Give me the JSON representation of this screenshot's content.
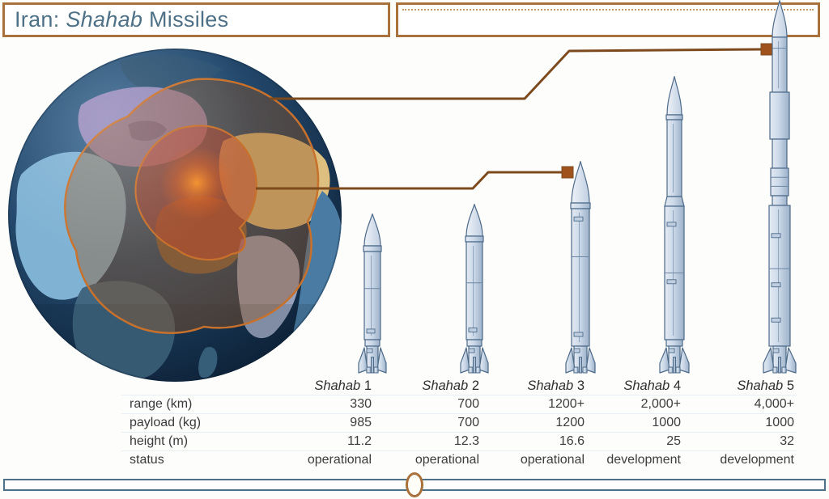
{
  "title": {
    "prefix": "Iran: ",
    "italic": "Shahab",
    "suffix": " Missiles"
  },
  "colors": {
    "accent_brown": "#a9713c",
    "callout_line_brown": "#7d4a1e",
    "callout_marker_brown": "#a0521c",
    "teal": "#4e7187",
    "range_ring_orange": "#c8712c",
    "missile_body_blue": "#ccd9e9"
  },
  "table": {
    "row_labels": [
      "range (km)",
      "payload (kg)",
      "height (m)",
      "status"
    ]
  },
  "missiles": [
    {
      "name": "Shahab",
      "number": "1",
      "range": "330",
      "payload": "985",
      "height": "11.2",
      "status": "operational"
    },
    {
      "name": "Shahab",
      "number": "2",
      "range": "700",
      "payload": "700",
      "height": "12.3",
      "status": "operational"
    },
    {
      "name": "Shahab",
      "number": "3",
      "range": "1200+",
      "payload": "1200",
      "height": "16.6",
      "status": "operational"
    },
    {
      "name": "Shahab",
      "number": "4",
      "range": "2,000+",
      "payload": "1000",
      "height": "25",
      "status": "development"
    },
    {
      "name": "Shahab",
      "number": "5",
      "range": "4,000+",
      "payload": "1000",
      "height": "32",
      "status": "development"
    }
  ],
  "chart_data": {
    "type": "table",
    "title": "Iran: Shahab Missiles",
    "categories": [
      "Shahab 1",
      "Shahab 2",
      "Shahab 3",
      "Shahab 4",
      "Shahab 5"
    ],
    "series": [
      {
        "name": "range (km)",
        "values": [
          "330",
          "700",
          "1200+",
          "2,000+",
          "4,000+"
        ]
      },
      {
        "name": "payload (kg)",
        "values": [
          985,
          700,
          1200,
          1000,
          1000
        ]
      },
      {
        "name": "height (m)",
        "values": [
          11.2,
          12.3,
          16.6,
          25,
          32
        ]
      },
      {
        "name": "status",
        "values": [
          "operational",
          "operational",
          "operational",
          "development",
          "development"
        ]
      }
    ],
    "notes": "Globe with two orange range rings centered on Iran; callout lines link the inner ring to Shahab 3 and the outer ring to Shahab 5. Missile drawings scale with height."
  }
}
